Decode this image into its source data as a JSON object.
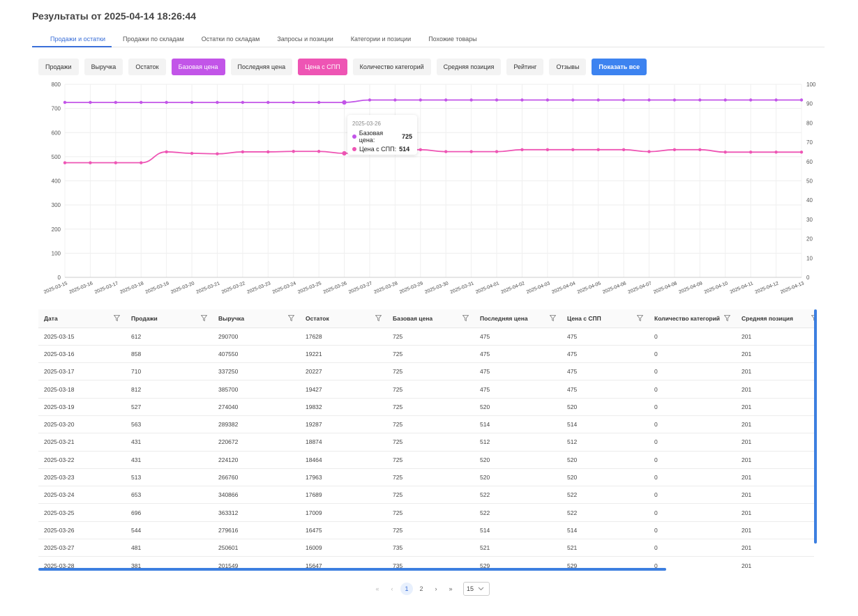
{
  "title": "Результаты от 2025-04-14 18:26:44",
  "tabs": [
    {
      "label": "Продажи и остатки",
      "active": true
    },
    {
      "label": "Продажи по складам",
      "active": false
    },
    {
      "label": "Остатки по складам",
      "active": false
    },
    {
      "label": "Запросы и позиции",
      "active": false
    },
    {
      "label": "Категории и позиции",
      "active": false
    },
    {
      "label": "Похожие товары",
      "active": false
    }
  ],
  "toggles": [
    {
      "label": "Продажи",
      "state": "off"
    },
    {
      "label": "Выручка",
      "state": "off"
    },
    {
      "label": "Остаток",
      "state": "off"
    },
    {
      "label": "Базовая цена",
      "state": "purple"
    },
    {
      "label": "Последняя цена",
      "state": "off"
    },
    {
      "label": "Цена с СПП",
      "state": "pink"
    },
    {
      "label": "Количество категорий",
      "state": "off"
    },
    {
      "label": "Средняя позиция",
      "state": "off"
    },
    {
      "label": "Рейтинг",
      "state": "off"
    },
    {
      "label": "Отзывы",
      "state": "off"
    },
    {
      "label": "Показать все",
      "state": "blue"
    }
  ],
  "colors": {
    "base_price": "#c255e8",
    "spp_price": "#ee55b4",
    "accent": "#3d83f0"
  },
  "chart_data": {
    "type": "line",
    "x": [
      "2025-03-15",
      "2025-03-16",
      "2025-03-17",
      "2025-03-18",
      "2025-03-19",
      "2025-03-20",
      "2025-03-21",
      "2025-03-22",
      "2025-03-23",
      "2025-03-24",
      "2025-03-25",
      "2025-03-26",
      "2025-03-27",
      "2025-03-28",
      "2025-03-29",
      "2025-03-30",
      "2025-03-31",
      "2025-04-01",
      "2025-04-02",
      "2025-04-03",
      "2025-04-04",
      "2025-04-05",
      "2025-04-06",
      "2025-04-07",
      "2025-04-08",
      "2025-04-09",
      "2025-04-10",
      "2025-04-11",
      "2025-04-12",
      "2025-04-13"
    ],
    "series": [
      {
        "name": "Базовая цена",
        "color": "#c255e8",
        "values": [
          725,
          725,
          725,
          725,
          725,
          725,
          725,
          725,
          725,
          725,
          725,
          725,
          735,
          735,
          735,
          735,
          735,
          735,
          735,
          735,
          735,
          735,
          735,
          735,
          735,
          735,
          735,
          735,
          735,
          735
        ]
      },
      {
        "name": "Цена с СПП",
        "color": "#ee55b4",
        "values": [
          475,
          475,
          475,
          475,
          520,
          514,
          512,
          520,
          520,
          522,
          522,
          514,
          521,
          529,
          529,
          521,
          521,
          521,
          529,
          529,
          529,
          529,
          529,
          521,
          529,
          529,
          519,
          519,
          519,
          519
        ]
      }
    ],
    "ylim_left": [
      0,
      800
    ],
    "yticks_left": [
      0,
      100,
      200,
      300,
      400,
      500,
      600,
      700,
      800
    ],
    "ylim_right": [
      0,
      100
    ],
    "yticks_right": [
      0,
      10,
      20,
      30,
      40,
      50,
      60,
      70,
      80,
      90,
      100
    ],
    "grid": true,
    "tooltip": {
      "date": "2025-03-26",
      "items": [
        {
          "label": "Базовая цена:",
          "value": "725"
        },
        {
          "label": "Цена с СПП:",
          "value": "514"
        }
      ]
    }
  },
  "table": {
    "columns": [
      "Дата",
      "Продажи",
      "Выручка",
      "Остаток",
      "Базовая цена",
      "Последняя цена",
      "Цена с СПП",
      "Количество категорий",
      "Средняя позиция"
    ],
    "rows": [
      [
        "2025-03-15",
        "612",
        "290700",
        "17628",
        "725",
        "475",
        "475",
        "0",
        "201"
      ],
      [
        "2025-03-16",
        "858",
        "407550",
        "19221",
        "725",
        "475",
        "475",
        "0",
        "201"
      ],
      [
        "2025-03-17",
        "710",
        "337250",
        "20227",
        "725",
        "475",
        "475",
        "0",
        "201"
      ],
      [
        "2025-03-18",
        "812",
        "385700",
        "19427",
        "725",
        "475",
        "475",
        "0",
        "201"
      ],
      [
        "2025-03-19",
        "527",
        "274040",
        "19832",
        "725",
        "520",
        "520",
        "0",
        "201"
      ],
      [
        "2025-03-20",
        "563",
        "289382",
        "19287",
        "725",
        "514",
        "514",
        "0",
        "201"
      ],
      [
        "2025-03-21",
        "431",
        "220672",
        "18874",
        "725",
        "512",
        "512",
        "0",
        "201"
      ],
      [
        "2025-03-22",
        "431",
        "224120",
        "18464",
        "725",
        "520",
        "520",
        "0",
        "201"
      ],
      [
        "2025-03-23",
        "513",
        "266760",
        "17963",
        "725",
        "520",
        "520",
        "0",
        "201"
      ],
      [
        "2025-03-24",
        "653",
        "340866",
        "17689",
        "725",
        "522",
        "522",
        "0",
        "201"
      ],
      [
        "2025-03-25",
        "696",
        "363312",
        "17009",
        "725",
        "522",
        "522",
        "0",
        "201"
      ],
      [
        "2025-03-26",
        "544",
        "279616",
        "16475",
        "725",
        "514",
        "514",
        "0",
        "201"
      ],
      [
        "2025-03-27",
        "481",
        "250601",
        "16009",
        "735",
        "521",
        "521",
        "0",
        "201"
      ],
      [
        "2025-03-28",
        "381",
        "201549",
        "15647",
        "735",
        "529",
        "529",
        "0",
        "201"
      ]
    ]
  },
  "pagination": {
    "first": "«",
    "prev": "‹",
    "pages": [
      "1",
      "2"
    ],
    "current": "1",
    "next": "›",
    "last": "»",
    "page_size": "15"
  }
}
